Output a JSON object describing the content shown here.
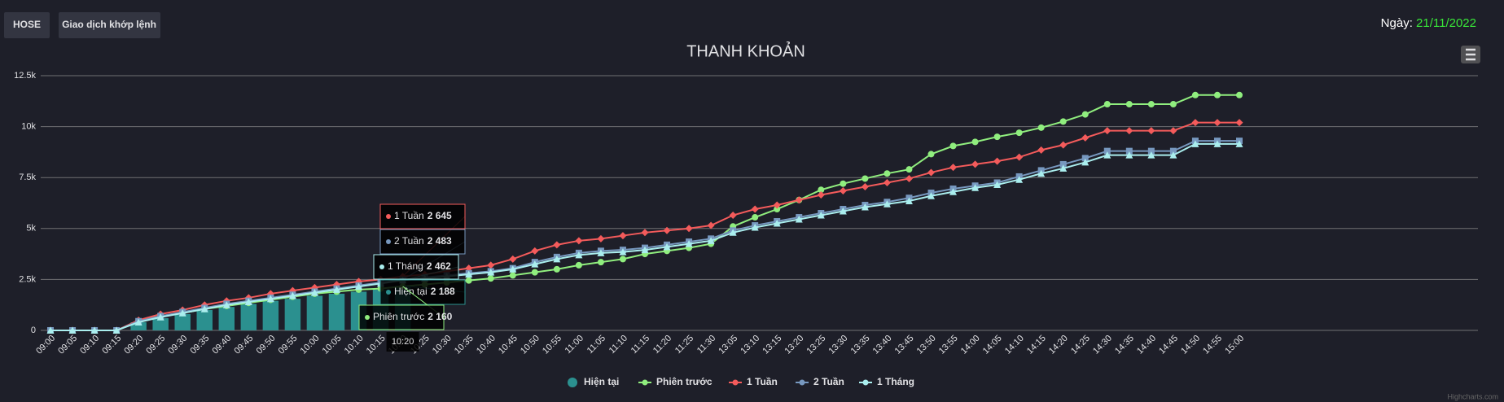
{
  "header": {
    "buttons": [
      "HOSE",
      "Giao dịch khớp lệnh"
    ],
    "date_label": "Ngày:",
    "date": "21/11/2022"
  },
  "chart_data": {
    "type": "line",
    "title": "THANH KHOẢN",
    "categories": [
      "09:00",
      "09:05",
      "09:10",
      "09:15",
      "09:20",
      "09:25",
      "09:30",
      "09:35",
      "09:40",
      "09:45",
      "09:50",
      "09:55",
      "10:00",
      "10:05",
      "10:10",
      "10:15",
      "10:20",
      "10:25",
      "10:30",
      "10:35",
      "10:40",
      "10:45",
      "10:50",
      "10:55",
      "11:00",
      "11:05",
      "11:10",
      "11:15",
      "11:20",
      "11:25",
      "11:30",
      "13:05",
      "13:10",
      "13:15",
      "13:20",
      "13:25",
      "13:30",
      "13:35",
      "13:40",
      "13:45",
      "13:50",
      "13:55",
      "14:00",
      "14:05",
      "14:10",
      "14:15",
      "14:20",
      "14:25",
      "14:30",
      "14:35",
      "14:40",
      "14:45",
      "14:50",
      "14:55",
      "15:00"
    ],
    "ylim": [
      0,
      12500
    ],
    "yticks": [
      0,
      {
        "value": 2500,
        "label": "2.5k"
      },
      {
        "value": 5000,
        "label": "5k"
      },
      {
        "value": 7500,
        "label": "7.5k"
      },
      {
        "value": 10000,
        "label": "10k"
      },
      {
        "value": 12500,
        "label": "12.5k"
      }
    ],
    "grid": true,
    "series": [
      {
        "name": "Hiện tại",
        "type": "column",
        "color": "#2b908f",
        "values": [
          0,
          0,
          0,
          0,
          400,
          600,
          800,
          1000,
          1150,
          1300,
          1450,
          1550,
          1700,
          1800,
          1900,
          2000,
          2188,
          null,
          null,
          null,
          null,
          null,
          null,
          null,
          null,
          null,
          null,
          null,
          null,
          null,
          null,
          null,
          null,
          null,
          null,
          null,
          null,
          null,
          null,
          null,
          null,
          null,
          null,
          null,
          null,
          null,
          null,
          null,
          null,
          null,
          null,
          null,
          null,
          null,
          null
        ]
      },
      {
        "name": "Phiên trước",
        "marker": "circle",
        "color": "#90ee7e",
        "values": [
          0,
          0,
          0,
          0,
          450,
          700,
          850,
          1050,
          1200,
          1350,
          1500,
          1650,
          1800,
          1900,
          2000,
          2050,
          2160,
          2250,
          2350,
          2450,
          2550,
          2700,
          2850,
          3000,
          3200,
          3350,
          3500,
          3750,
          3900,
          4050,
          4250,
          5100,
          5550,
          5950,
          6400,
          6900,
          7200,
          7450,
          7700,
          7900,
          8650,
          9050,
          9250,
          9500,
          9700,
          9950,
          10250,
          10600,
          11100,
          11100,
          11100,
          11100,
          11550,
          11550,
          11550
        ]
      },
      {
        "name": "1 Tuần",
        "marker": "diamond",
        "color": "#f45b5b",
        "values": [
          0,
          0,
          0,
          0,
          500,
          800,
          1000,
          1250,
          1450,
          1600,
          1800,
          1950,
          2100,
          2250,
          2400,
          2500,
          2645,
          2750,
          2900,
          3050,
          3200,
          3500,
          3900,
          4200,
          4400,
          4500,
          4650,
          4800,
          4900,
          5000,
          5150,
          5650,
          5950,
          6150,
          6400,
          6650,
          6850,
          7050,
          7250,
          7450,
          7750,
          8000,
          8150,
          8300,
          8500,
          8850,
          9100,
          9450,
          9800,
          9800,
          9800,
          9800,
          10200,
          10200,
          10200
        ]
      },
      {
        "name": "2 Tuần",
        "marker": "square",
        "color": "#7798bf",
        "values": [
          0,
          0,
          0,
          0,
          450,
          700,
          900,
          1100,
          1300,
          1450,
          1600,
          1750,
          1900,
          2050,
          2200,
          2350,
          2483,
          2600,
          2700,
          2800,
          2900,
          3050,
          3350,
          3600,
          3800,
          3900,
          3950,
          4050,
          4200,
          4350,
          4500,
          4900,
          5150,
          5350,
          5550,
          5750,
          5950,
          6150,
          6300,
          6500,
          6750,
          6950,
          7100,
          7250,
          7550,
          7850,
          8150,
          8450,
          8800,
          8800,
          8800,
          8800,
          9300,
          9300,
          9300
        ]
      },
      {
        "name": "1 Tháng",
        "marker": "triangle",
        "color": "#aaeeee",
        "values": [
          0,
          0,
          0,
          0,
          400,
          650,
          850,
          1050,
          1250,
          1400,
          1550,
          1700,
          1850,
          2000,
          2150,
          2300,
          2462,
          2550,
          2650,
          2750,
          2850,
          3000,
          3250,
          3500,
          3700,
          3800,
          3850,
          3950,
          4100,
          4250,
          4400,
          4800,
          5050,
          5250,
          5450,
          5650,
          5850,
          6050,
          6200,
          6350,
          6600,
          6800,
          7000,
          7150,
          7400,
          7700,
          7950,
          8250,
          8600,
          8600,
          8600,
          8600,
          9150,
          9150,
          9150
        ]
      }
    ],
    "tooltip": {
      "x": "10:20",
      "items": [
        {
          "name": "1 Tuần",
          "value": 2645,
          "label": "2 645"
        },
        {
          "name": "2 Tuần",
          "value": 2483,
          "label": "2 483"
        },
        {
          "name": "1 Tháng",
          "value": 2462,
          "label": "2 462"
        },
        {
          "name": "Hiện tại",
          "value": 2188,
          "label": "2 188"
        },
        {
          "name": "Phiên trước",
          "value": 2160,
          "label": "2 160"
        }
      ]
    },
    "credit": "Highcharts.com"
  }
}
